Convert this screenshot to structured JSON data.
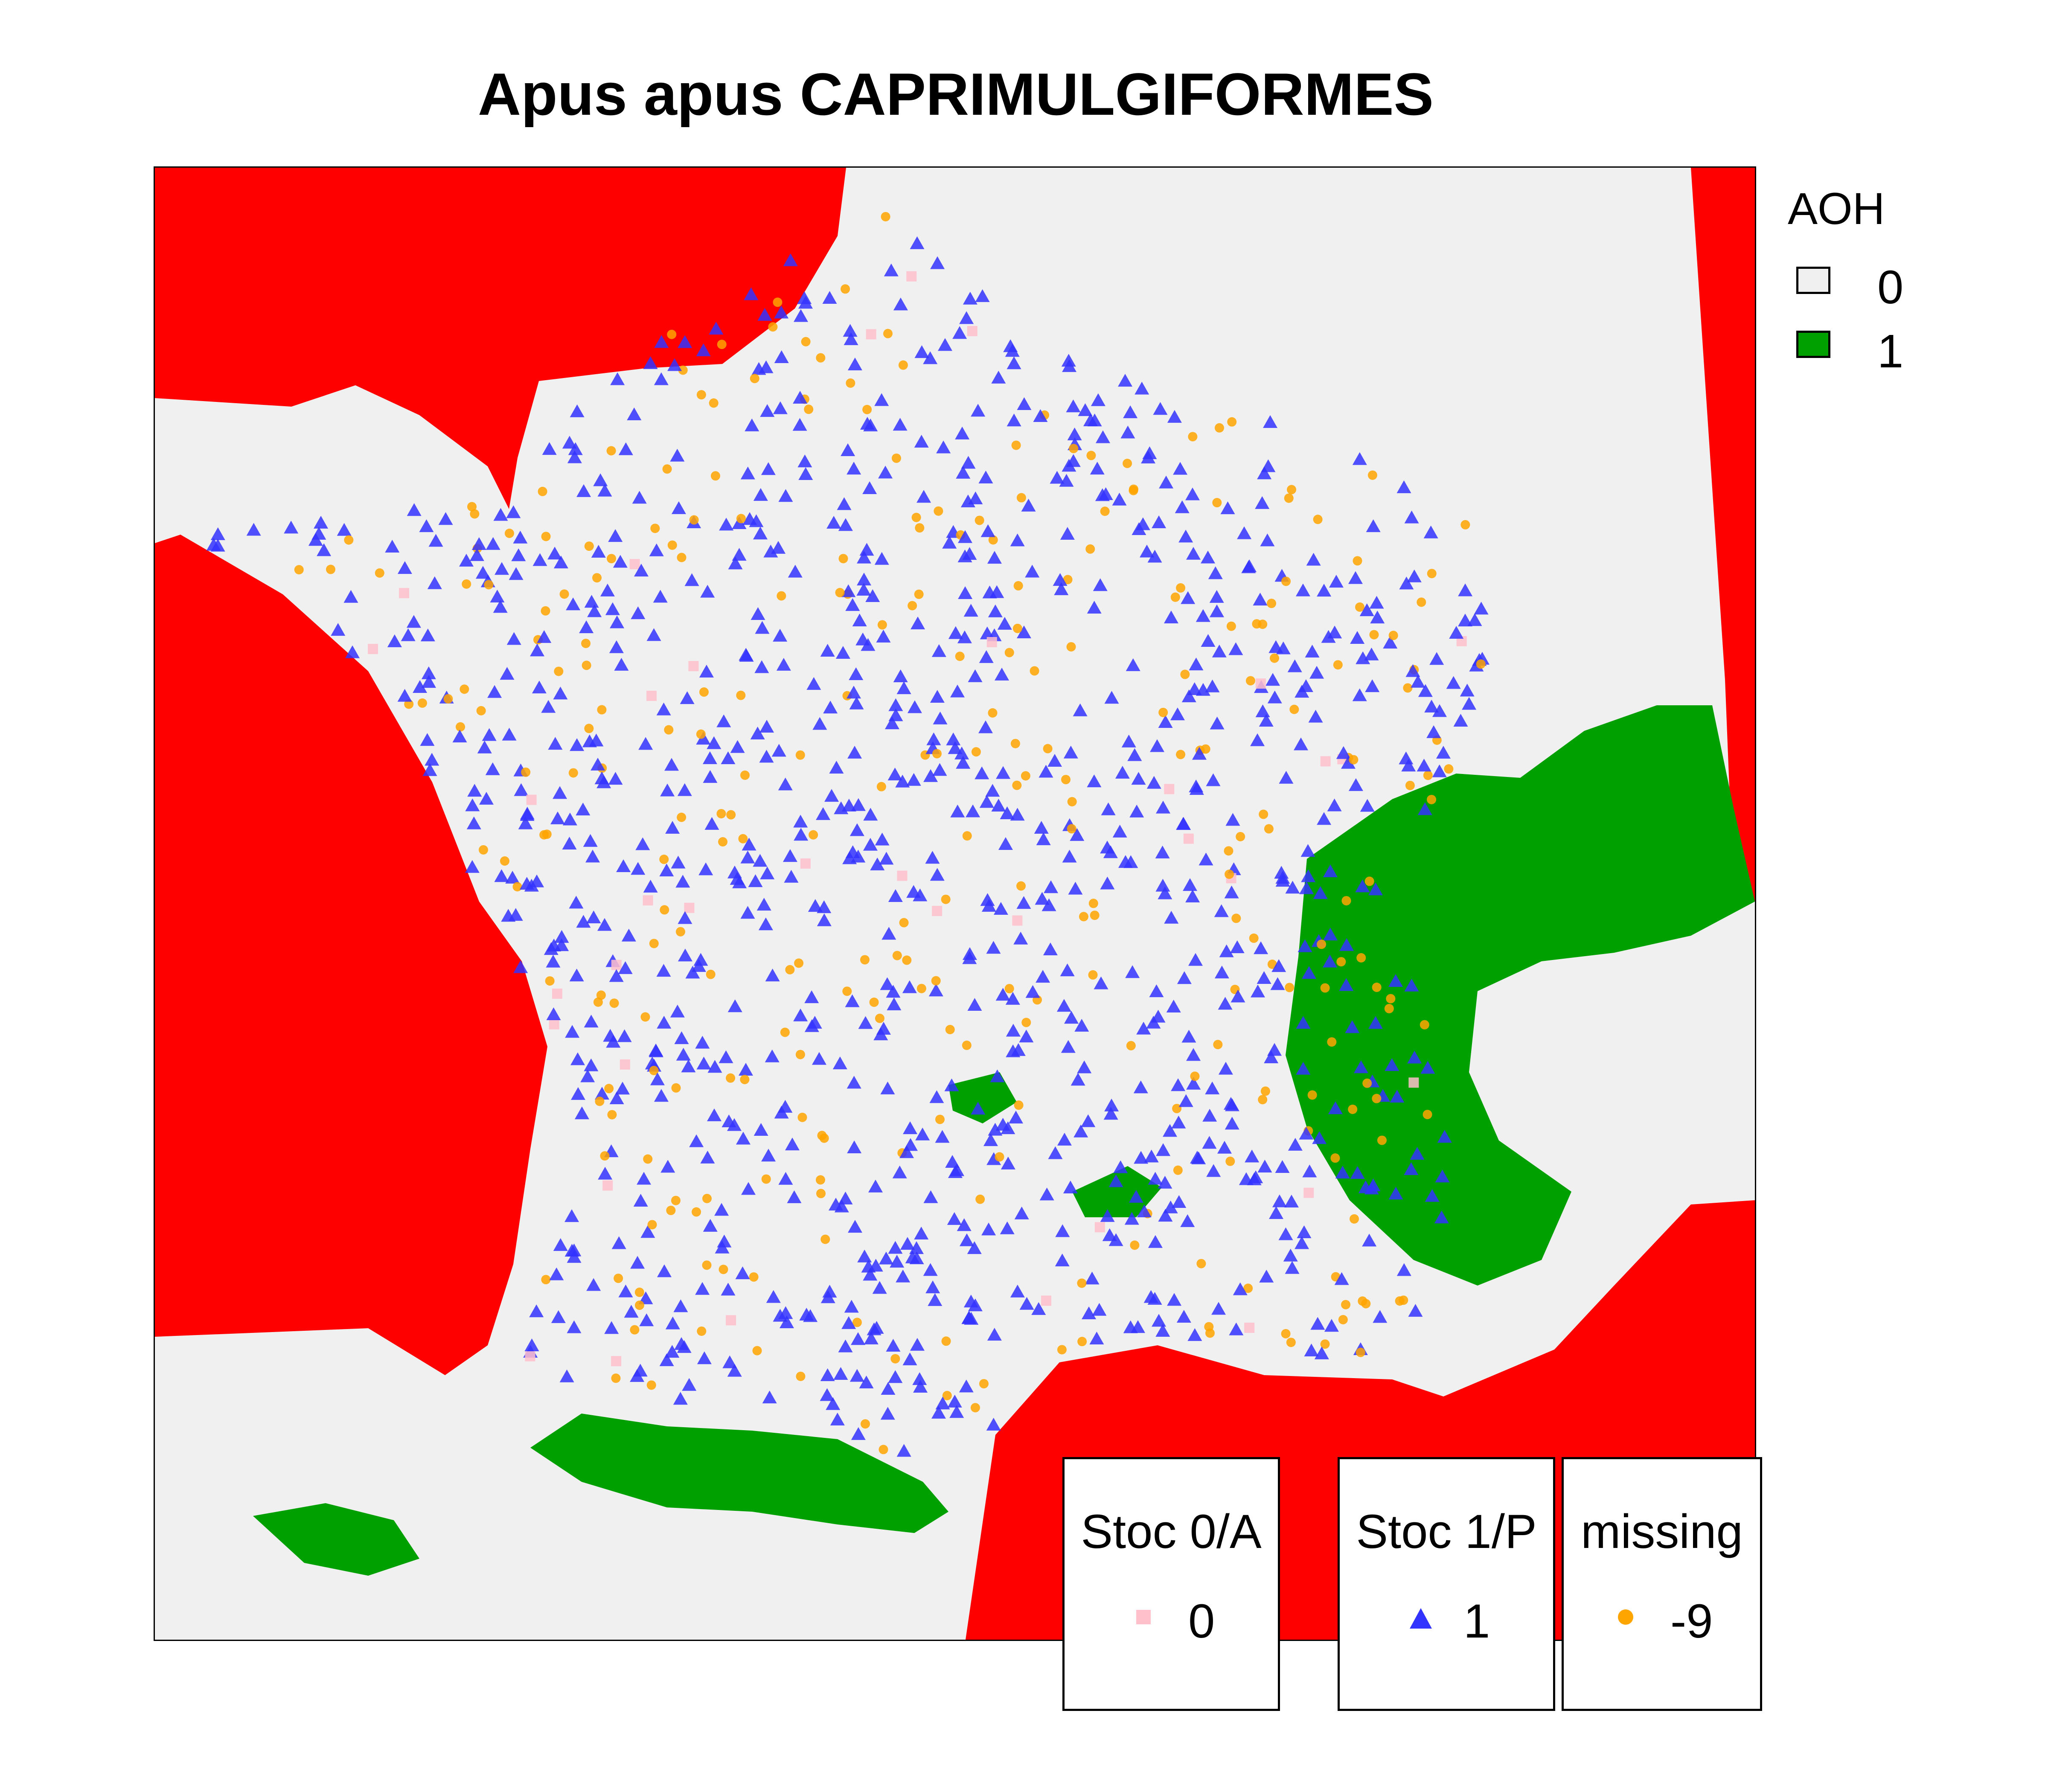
{
  "title": "Apus apus CAPRIMULGIFORMES",
  "colors": {
    "aoh_0": "#f0f0f0",
    "aoh_1": "#00a000",
    "sea": "#ff0000",
    "stoc_0": "#ffc0cb",
    "stoc_1": "#3333ff",
    "missing": "#ffa500"
  },
  "aoh_legend": {
    "title": "AOH",
    "items": [
      {
        "label": "0",
        "color": "#f0f0f0"
      },
      {
        "label": "1",
        "color": "#00a000"
      }
    ]
  },
  "point_legends": [
    {
      "title": "Stoc 0/A",
      "label": "0",
      "shape": "square",
      "color": "#ffc0cb"
    },
    {
      "title": "Stoc 1/P",
      "label": "1",
      "shape": "triangle",
      "color": "#3333ff"
    },
    {
      "title": "missing",
      "label": "-9",
      "shape": "circle",
      "color": "#ffa500"
    }
  ],
  "map": {
    "region": "France",
    "layers": [
      "AOH raster (0/1)",
      "sea mask",
      "Stoc 0/A points",
      "Stoc 1/P points",
      "missing points"
    ]
  }
}
